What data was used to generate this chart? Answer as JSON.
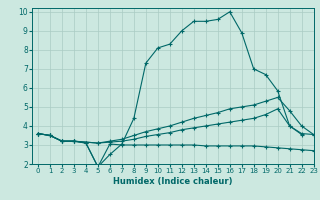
{
  "title": "",
  "xlabel": "Humidex (Indice chaleur)",
  "bg_color": "#cce8e0",
  "grid_color": "#aaccc4",
  "line_color": "#006868",
  "xlim": [
    -0.5,
    23
  ],
  "ylim": [
    2,
    10.2
  ],
  "xticks": [
    0,
    1,
    2,
    3,
    4,
    5,
    6,
    7,
    8,
    9,
    10,
    11,
    12,
    13,
    14,
    15,
    16,
    17,
    18,
    19,
    20,
    21,
    22,
    23
  ],
  "yticks": [
    2,
    3,
    4,
    5,
    6,
    7,
    8,
    9,
    10
  ],
  "line1_x": [
    0,
    1,
    2,
    3,
    4,
    5,
    6,
    7,
    8,
    9,
    10,
    11,
    12,
    13,
    14,
    15,
    16,
    17,
    18,
    19,
    20,
    21,
    22
  ],
  "line1_y": [
    3.6,
    3.5,
    3.2,
    3.2,
    3.1,
    1.85,
    2.5,
    3.05,
    4.4,
    7.3,
    8.1,
    8.3,
    9.0,
    9.5,
    9.5,
    9.6,
    10.0,
    8.9,
    7.0,
    6.7,
    5.85,
    4.0,
    3.55
  ],
  "line2_x": [
    0,
    1,
    2,
    3,
    4,
    5,
    6,
    7,
    8,
    9,
    10,
    11,
    12,
    13,
    14,
    15,
    16,
    17,
    18,
    19,
    20,
    21,
    22,
    23
  ],
  "line2_y": [
    3.6,
    3.5,
    3.2,
    3.2,
    3.1,
    1.85,
    3.05,
    3.0,
    3.0,
    3.0,
    3.0,
    3.0,
    3.0,
    3.0,
    2.95,
    2.95,
    2.95,
    2.95,
    2.95,
    2.9,
    2.85,
    2.8,
    2.75,
    2.7
  ],
  "line3_x": [
    0,
    1,
    2,
    3,
    5,
    6,
    7,
    8,
    9,
    10,
    11,
    12,
    13,
    14,
    15,
    16,
    17,
    18,
    19,
    20,
    21,
    22,
    23
  ],
  "line3_y": [
    3.6,
    3.5,
    3.2,
    3.2,
    3.1,
    3.2,
    3.3,
    3.5,
    3.7,
    3.85,
    4.0,
    4.2,
    4.4,
    4.55,
    4.7,
    4.9,
    5.0,
    5.1,
    5.3,
    5.5,
    4.8,
    4.0,
    3.55
  ],
  "line4_x": [
    0,
    1,
    2,
    3,
    5,
    6,
    7,
    8,
    9,
    10,
    11,
    12,
    13,
    14,
    15,
    16,
    17,
    18,
    19,
    20,
    21,
    22,
    23
  ],
  "line4_y": [
    3.6,
    3.5,
    3.2,
    3.2,
    3.1,
    3.15,
    3.2,
    3.3,
    3.45,
    3.55,
    3.65,
    3.8,
    3.9,
    4.0,
    4.1,
    4.2,
    4.3,
    4.4,
    4.6,
    4.9,
    4.0,
    3.6,
    3.55
  ]
}
